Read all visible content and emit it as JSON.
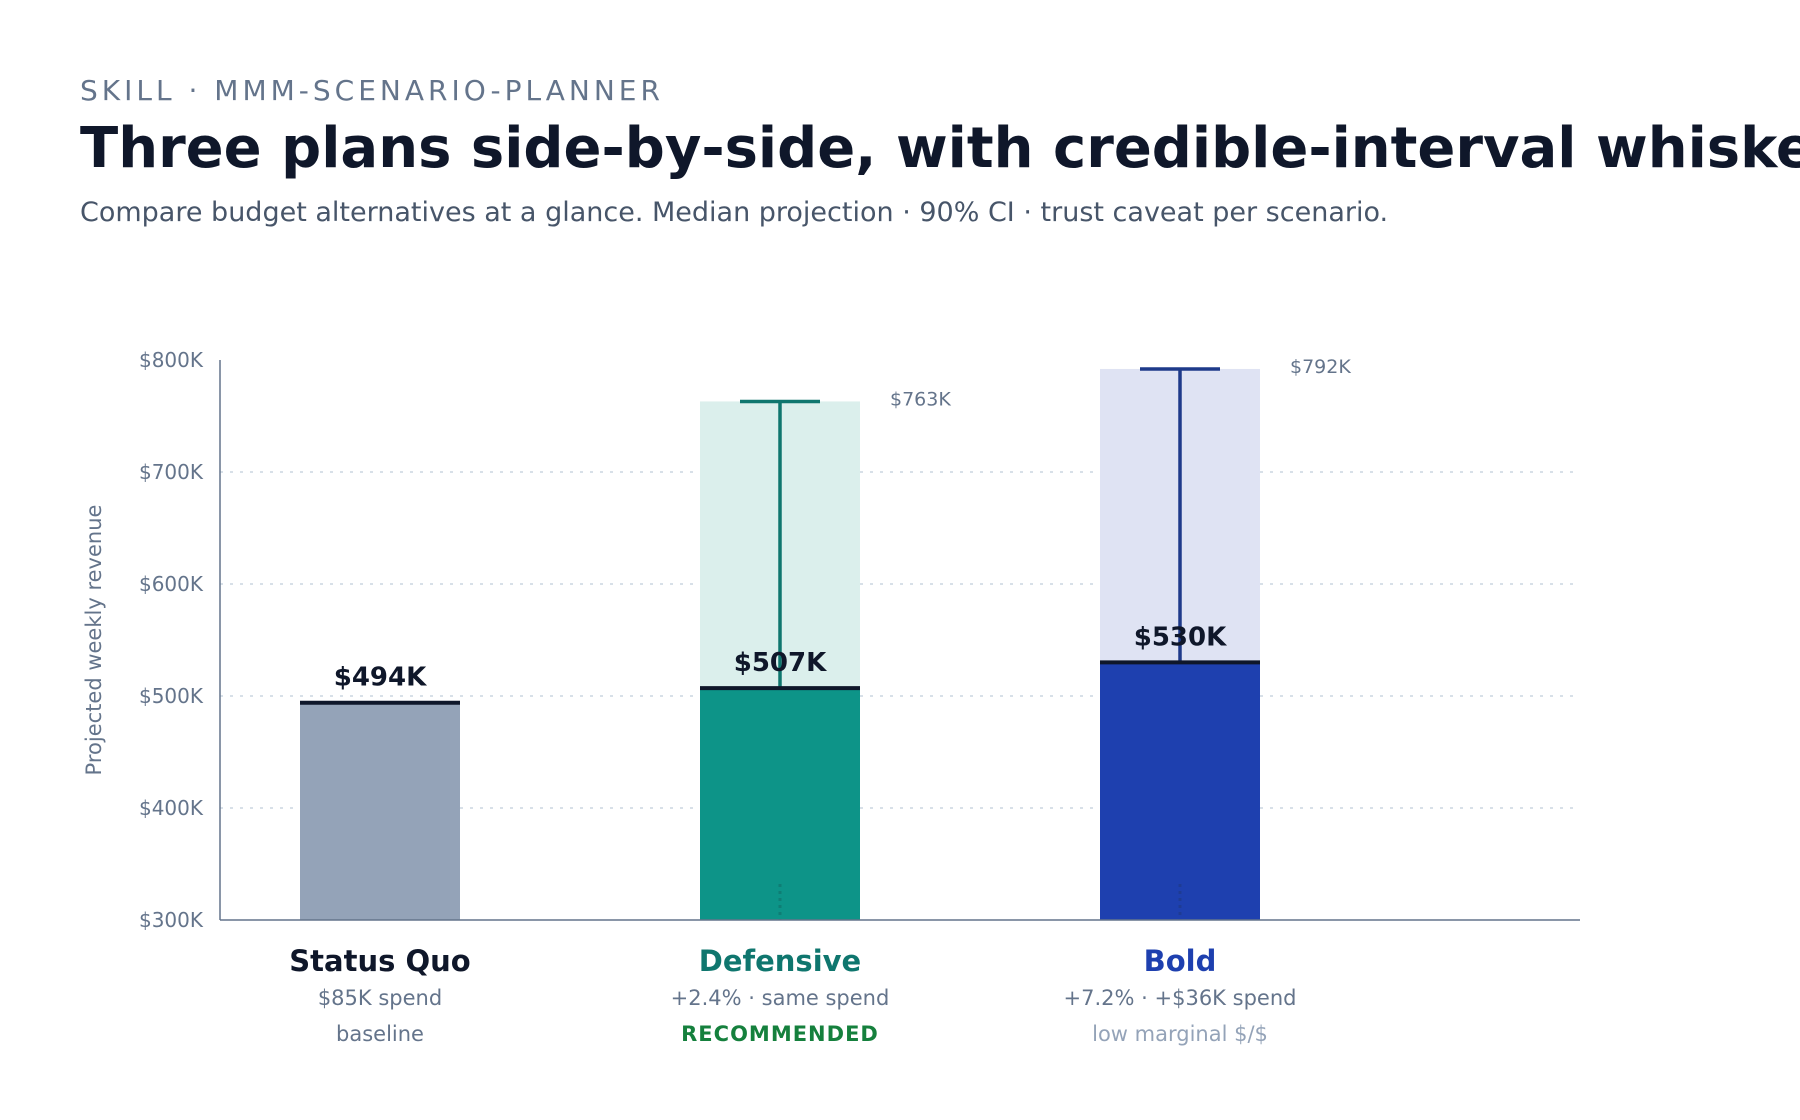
{
  "header": {
    "eyebrow": "SKILL · MMM-SCENARIO-PLANNER",
    "title": "Three plans side-by-side, with credible-interval whiskers",
    "subtitle": "Compare budget alternatives at a glance. Median projection · 90% CI · trust caveat per scenario."
  },
  "chart_data": {
    "type": "bar",
    "ylabel": "Projected weekly revenue",
    "ylim": [
      300,
      800
    ],
    "yticks": [
      {
        "value": 300,
        "label": "$300K"
      },
      {
        "value": 400,
        "label": "$400K"
      },
      {
        "value": 500,
        "label": "$500K"
      },
      {
        "value": 600,
        "label": "$600K"
      },
      {
        "value": 700,
        "label": "$700K"
      },
      {
        "value": 800,
        "label": "$800K"
      }
    ],
    "grid": true,
    "categories": [
      "Status Quo",
      "Defensive",
      "Bold"
    ],
    "series": [
      {
        "name": "Median projection",
        "values": [
          494,
          507,
          530
        ],
        "labels": [
          "$494K",
          "$507K",
          "$530K"
        ]
      }
    ],
    "ci_upper": [
      null,
      763,
      792
    ],
    "ci_upper_labels": [
      "",
      "$763K",
      "$792K"
    ],
    "ci_lower_visible": [
      null,
      300,
      300
    ],
    "scenarios": [
      {
        "name": "Status Quo",
        "line1": "$85K spend",
        "line2": "baseline",
        "color": "#94a3b8",
        "light_color": "",
        "name_color": "#0f172a",
        "line2_color": "#64748b"
      },
      {
        "name": "Defensive",
        "line1": "+2.4% · same spend",
        "line2": "RECOMMENDED",
        "color": "#0d9488",
        "light_color": "#dbefec",
        "whisker_color": "#0f766e",
        "name_color": "#0f766e",
        "line2_color": "#15803d"
      },
      {
        "name": "Bold",
        "line1": "+7.2% · +$36K spend",
        "line2": "low marginal $/$",
        "color": "#1e40af",
        "light_color": "#dfe3f3",
        "whisker_color": "#1e3a8a",
        "name_color": "#1e40af",
        "line2_color": "#94a3b8"
      }
    ]
  }
}
